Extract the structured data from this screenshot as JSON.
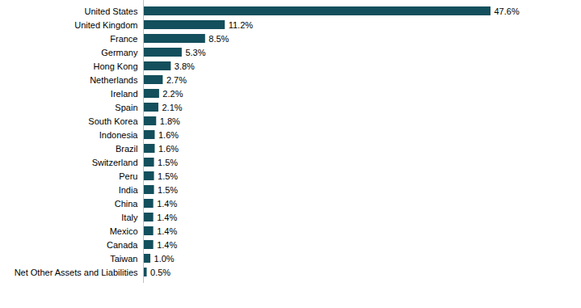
{
  "chart_data": {
    "type": "bar",
    "orientation": "horizontal",
    "categories": [
      "United States",
      "United Kingdom",
      "France",
      "Germany",
      "Hong Kong",
      "Netherlands",
      "Ireland",
      "Spain",
      "South Korea",
      "Indonesia",
      "Brazil",
      "Switzerland",
      "Peru",
      "India",
      "China",
      "Italy",
      "Mexico",
      "Canada",
      "Taiwan",
      "Net Other Assets and Liabilities"
    ],
    "values": [
      47.6,
      11.2,
      8.5,
      5.3,
      3.8,
      2.7,
      2.2,
      2.1,
      1.8,
      1.6,
      1.6,
      1.5,
      1.5,
      1.5,
      1.4,
      1.4,
      1.4,
      1.4,
      1.0,
      0.5
    ],
    "value_labels": [
      "47.6%",
      "11.2%",
      "8.5%",
      "5.3%",
      "3.8%",
      "2.7%",
      "2.2%",
      "2.1%",
      "1.8%",
      "1.6%",
      "1.6%",
      "1.5%",
      "1.5%",
      "1.5%",
      "1.4%",
      "1.4%",
      "1.4%",
      "1.4%",
      "1.0%",
      "0.5%"
    ],
    "color": "#134f5c",
    "data_labels": true,
    "tick_labels": "y",
    "grid": false
  }
}
